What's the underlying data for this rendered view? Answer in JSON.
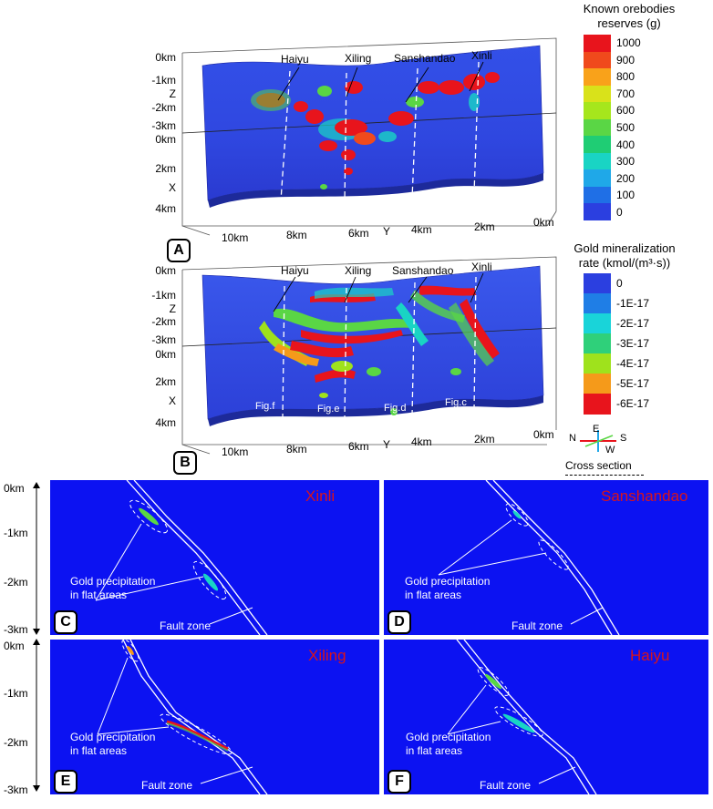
{
  "panel_a": {
    "letter": "A",
    "z_ticks": [
      "0km",
      "-1km",
      "Z",
      "-2km",
      "-3km"
    ],
    "x_ticks": [
      "0km",
      "2km",
      "X",
      "4km"
    ],
    "y_ticks": [
      "10km",
      "8km",
      "6km",
      "Y",
      "4km",
      "2km",
      "0km"
    ],
    "sections": [
      "Haiyu",
      "Xiling",
      "Sanshandao",
      "Xinli"
    ]
  },
  "panel_b": {
    "letter": "B",
    "z_ticks": [
      "0km",
      "-1km",
      "Z",
      "-2km",
      "-3km"
    ],
    "x_ticks": [
      "0km",
      "2km",
      "X",
      "4km"
    ],
    "y_ticks": [
      "10km",
      "8km",
      "6km",
      "Y",
      "4km",
      "2km",
      "0km"
    ],
    "sections": [
      "Haiyu",
      "Xiling",
      "Sanshandao",
      "Xinli"
    ],
    "fig_tags": [
      "Fig.f",
      "Fig.e",
      "Fig.d",
      "Fig.c"
    ]
  },
  "legend_a": {
    "title_line1": "Known orebodies",
    "title_line2": "reserves (g)",
    "ticks": [
      "1000",
      "900",
      "800",
      "700",
      "600",
      "500",
      "400",
      "300",
      "200",
      "100",
      "0"
    ],
    "colors": [
      "#e8141c",
      "#f04a1c",
      "#f9a21a",
      "#d9e21a",
      "#a6e61c",
      "#5ad645",
      "#1fcd74",
      "#19d4c4",
      "#1fa8e8",
      "#1f6fe6",
      "#2b3fe0"
    ]
  },
  "legend_b": {
    "title_line1": "Gold mineralization",
    "title_line2": "rate (kmol/(m³·s))",
    "ticks": [
      "0",
      "-1E-17",
      "-2E-17",
      "-3E-17",
      "-4E-17",
      "-5E-17",
      "-6E-17"
    ],
    "colors": [
      "#2b3fe0",
      "#1f7ee6",
      "#19d4d9",
      "#2fd07a",
      "#9fe21c",
      "#f59a1a",
      "#e8141c"
    ]
  },
  "compass": {
    "n": "N",
    "e": "E",
    "s": "S",
    "w": "W",
    "caption": "Cross section"
  },
  "sections": [
    {
      "letter": "C",
      "name": "Xinli",
      "label_line1": "Gold precipitation",
      "label_line2": "in flat areas",
      "fault": "Fault zone"
    },
    {
      "letter": "D",
      "name": "Sanshandao",
      "label_line1": "Gold precipitation",
      "label_line2": "in flat areas",
      "fault": "Fault zone"
    },
    {
      "letter": "E",
      "name": "Xiling",
      "label_line1": "Gold precipitation",
      "label_line2": "in flat areas",
      "fault": "Fault zone"
    },
    {
      "letter": "F",
      "name": "Haiyu",
      "label_line1": "Gold precipitation",
      "label_line2": "in flat areas",
      "fault": "Fault zone"
    }
  ],
  "depth_axis": {
    "top": [
      "0km",
      "-1km",
      "-2km",
      "-3km"
    ],
    "bottom": [
      "0km",
      "-1km",
      "-2km",
      "-3km"
    ]
  }
}
